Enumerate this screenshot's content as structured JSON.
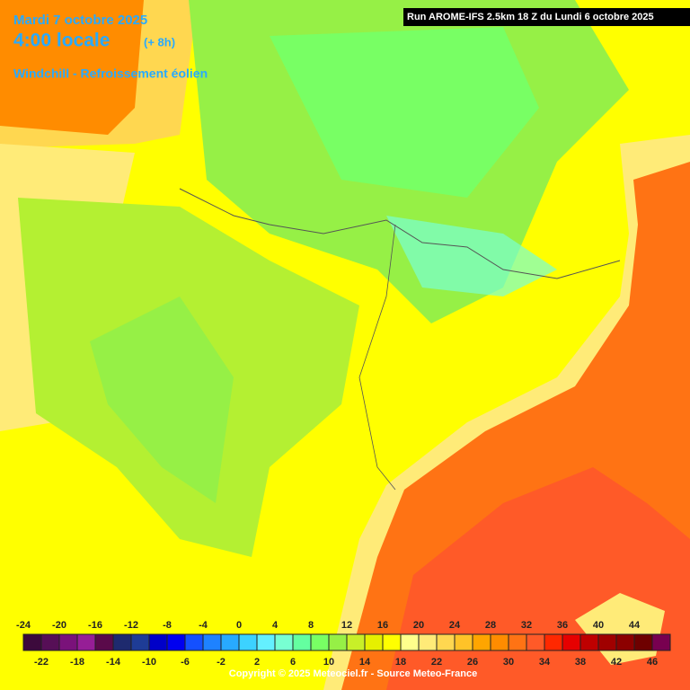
{
  "header": {
    "date": "Mardi 7 octobre 2025",
    "time": "4:00 locale",
    "lead": "(+ 8h)",
    "parameter": "Windchill - Refroissement éolien",
    "run": "Run AROME-IFS 2.5km 18 Z du Lundi 6 octobre 2025"
  },
  "legend": {
    "top_labels": [
      -24,
      -20,
      -16,
      -12,
      -8,
      -4,
      0,
      4,
      8,
      12,
      16,
      20,
      24,
      28,
      32,
      36,
      40,
      44
    ],
    "bottom_labels": [
      -22,
      -18,
      -14,
      -10,
      -6,
      -2,
      2,
      6,
      10,
      14,
      18,
      22,
      26,
      30,
      34,
      38,
      42,
      46
    ],
    "colors": [
      "#3c0a3c",
      "#560f56",
      "#7a127a",
      "#961e96",
      "#5a0a4a",
      "#1e2a6e",
      "#1e3c96",
      "#0000c8",
      "#0000f0",
      "#1450ff",
      "#1e82ff",
      "#28aaff",
      "#3cd2ff",
      "#64f0ff",
      "#78ffd2",
      "#64ffa0",
      "#78ff64",
      "#96f046",
      "#c8f028",
      "#e6f000",
      "#ffff00",
      "#ffff8c",
      "#ffeb78",
      "#ffd750",
      "#ffc328",
      "#ffa500",
      "#ff8c00",
      "#ff7314",
      "#ff5a28",
      "#ff2800",
      "#e60000",
      "#be0000",
      "#a00000",
      "#8c0000",
      "#6e0000",
      "#780050"
    ]
  },
  "footer": {
    "copyright": "Copyright © 2025 Meteociel.fr - Source Meteo-France"
  }
}
